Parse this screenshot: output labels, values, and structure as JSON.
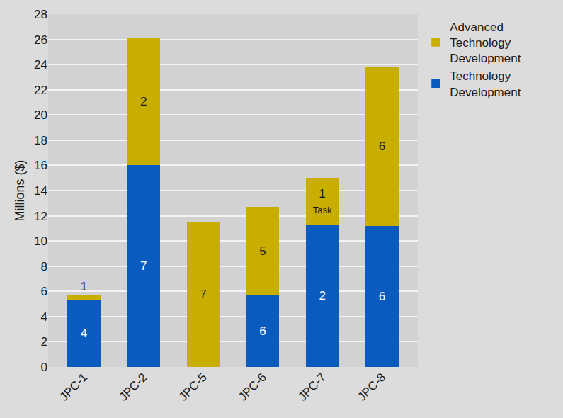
{
  "chart_data": {
    "type": "bar",
    "stacked": true,
    "y_label": "Millions ($)",
    "categories": [
      "JPC-1",
      "JPC-2",
      "JPC-5",
      "JPC-6",
      "JPC-7",
      "JPC-8"
    ],
    "series": [
      {
        "name": "Technology Development",
        "color": "#0a5bc0",
        "values": [
          5.3,
          16,
          0,
          5.7,
          11.3,
          11.2
        ],
        "segment_labels": [
          "4",
          "7",
          null,
          "6",
          "2",
          "6"
        ]
      },
      {
        "name": "Advanced Technology Development",
        "color": "#c8ae00",
        "values": [
          0.4,
          10.1,
          11.5,
          7.0,
          3.7,
          12.6
        ],
        "segment_labels": [
          "1",
          "2",
          "7",
          "5",
          "1\nTask",
          "6"
        ]
      }
    ],
    "ylim": [
      0,
      28
    ],
    "yticks": [
      0,
      2,
      4,
      6,
      8,
      10,
      12,
      14,
      16,
      18,
      20,
      22,
      24,
      26,
      28
    ],
    "grid": true,
    "legend": "top right"
  }
}
